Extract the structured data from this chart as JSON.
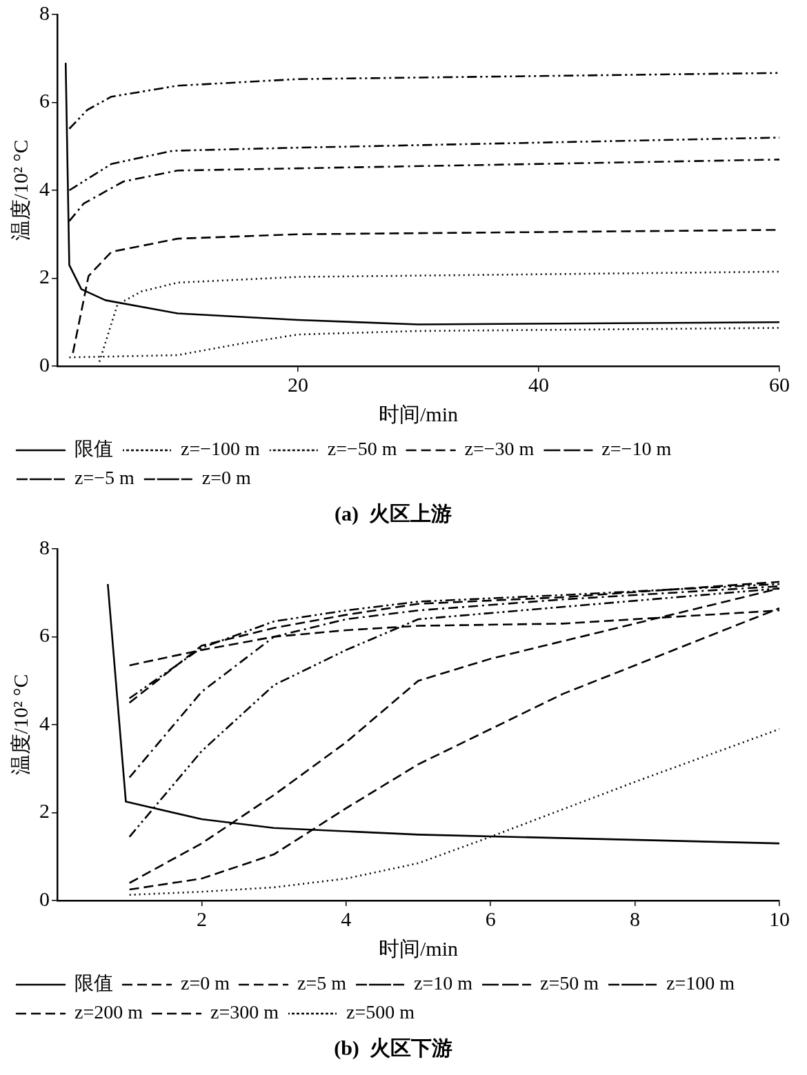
{
  "chart_data": [
    {
      "type": "line",
      "title": "(a)  火区上游",
      "xlabel": "时间/min",
      "ylabel": "温度/10² °C",
      "xlim": [
        0,
        60
      ],
      "xticks": [
        20,
        40,
        60
      ],
      "ylim": [
        0,
        8
      ],
      "yticks": [
        0,
        2,
        4,
        6,
        8
      ],
      "legend": "bottom",
      "marker": "none",
      "series": [
        {
          "name": "限值",
          "color": "#000000",
          "line_style": "solid",
          "x": [
            0.7,
            1,
            2,
            4,
            10,
            20,
            30,
            60
          ],
          "values": [
            6.9,
            2.3,
            1.75,
            1.5,
            1.2,
            1.05,
            0.95,
            1.0
          ]
        },
        {
          "name": "z=−100 m",
          "color": "#000000",
          "line_style": "dotted",
          "x": [
            1,
            10,
            15,
            20,
            30,
            60
          ],
          "values": [
            0.2,
            0.25,
            0.5,
            0.72,
            0.8,
            0.87
          ]
        },
        {
          "name": "z=−50 m",
          "color": "#000000",
          "line_style": "dotted",
          "x": [
            3.5,
            5,
            7,
            10,
            20,
            60
          ],
          "values": [
            0.1,
            1.4,
            1.7,
            1.9,
            2.03,
            2.15
          ]
        },
        {
          "name": "z=−30 m",
          "color": "#000000",
          "line_style": "dashed",
          "x": [
            1.3,
            2.6,
            4.5,
            10,
            20,
            60
          ],
          "values": [
            0.3,
            2.05,
            2.6,
            2.9,
            3.0,
            3.1
          ]
        },
        {
          "name": "z=−10 m",
          "color": "#000000",
          "line_style": "dashdot",
          "x": [
            1,
            2.2,
            5.5,
            10,
            20,
            60
          ],
          "values": [
            3.3,
            3.7,
            4.2,
            4.45,
            4.5,
            4.7
          ]
        },
        {
          "name": "z=−5 m",
          "color": "#000000",
          "line_style": "dashdotdot",
          "x": [
            1,
            4.5,
            9.6,
            20,
            60
          ],
          "values": [
            4.0,
            4.6,
            4.9,
            4.97,
            5.2
          ]
        },
        {
          "name": "z=0 m",
          "color": "#000000",
          "line_style": "dashdotdot",
          "x": [
            1,
            2.5,
            4.5,
            10,
            20,
            60
          ],
          "values": [
            5.4,
            5.83,
            6.13,
            6.38,
            6.53,
            6.67
          ]
        }
      ]
    },
    {
      "type": "line",
      "title": "(b)  火区下游",
      "xlabel": "时间/min",
      "ylabel": "温度/10² °C",
      "xlim": [
        0,
        10
      ],
      "xticks": [
        2,
        4,
        6,
        8,
        10
      ],
      "ylim": [
        0,
        8
      ],
      "yticks": [
        0,
        2,
        4,
        6,
        8
      ],
      "legend": "bottom",
      "marker": "none",
      "series": [
        {
          "name": "限值",
          "color": "#000000",
          "line_style": "solid",
          "x": [
            0.7,
            0.95,
            2,
            3,
            5,
            10
          ],
          "values": [
            7.2,
            2.25,
            1.85,
            1.65,
            1.5,
            1.3
          ]
        },
        {
          "name": "z=0 m",
          "color": "#000000",
          "line_style": "dashed",
          "x": [
            1,
            2,
            3,
            4,
            5,
            7,
            10
          ],
          "values": [
            5.35,
            5.7,
            6.0,
            6.15,
            6.25,
            6.3,
            6.6
          ]
        },
        {
          "name": "z=5 m",
          "color": "#000000",
          "line_style": "dashed",
          "x": [
            1,
            2,
            3,
            4,
            5,
            7,
            10
          ],
          "values": [
            4.5,
            5.8,
            6.2,
            6.5,
            6.75,
            6.9,
            7.25
          ]
        },
        {
          "name": "z=10 m",
          "color": "#000000",
          "line_style": "dashdotdot",
          "x": [
            1,
            2,
            3,
            4,
            5,
            7,
            10
          ],
          "values": [
            4.6,
            5.75,
            6.35,
            6.6,
            6.8,
            6.95,
            7.2
          ]
        },
        {
          "name": "z=50 m",
          "color": "#000000",
          "line_style": "dashdot",
          "x": [
            1,
            2,
            3,
            4,
            5,
            7,
            10
          ],
          "values": [
            2.8,
            4.75,
            6.0,
            6.4,
            6.6,
            6.85,
            7.15
          ]
        },
        {
          "name": "z=100 m",
          "color": "#000000",
          "line_style": "dashdotdot",
          "x": [
            1,
            2,
            3,
            4,
            5,
            10
          ],
          "values": [
            1.45,
            3.4,
            4.9,
            5.7,
            6.4,
            7.1
          ]
        },
        {
          "name": "z=200 m",
          "color": "#000000",
          "line_style": "dashed",
          "x": [
            1,
            2,
            3,
            4,
            5,
            6,
            8,
            10
          ],
          "values": [
            0.4,
            1.3,
            2.4,
            3.6,
            5.0,
            5.5,
            6.3,
            7.1
          ]
        },
        {
          "name": "z=300 m",
          "color": "#000000",
          "line_style": "dashed",
          "x": [
            1,
            2,
            3,
            4,
            5,
            7,
            10
          ],
          "values": [
            0.25,
            0.5,
            1.05,
            2.1,
            3.1,
            4.7,
            6.65
          ]
        },
        {
          "name": "z=500 m",
          "color": "#000000",
          "line_style": "dotted",
          "x": [
            1,
            2,
            3,
            4,
            5,
            6,
            8,
            10
          ],
          "values": [
            0.13,
            0.2,
            0.3,
            0.5,
            0.85,
            1.45,
            2.7,
            3.9
          ]
        }
      ]
    }
  ]
}
